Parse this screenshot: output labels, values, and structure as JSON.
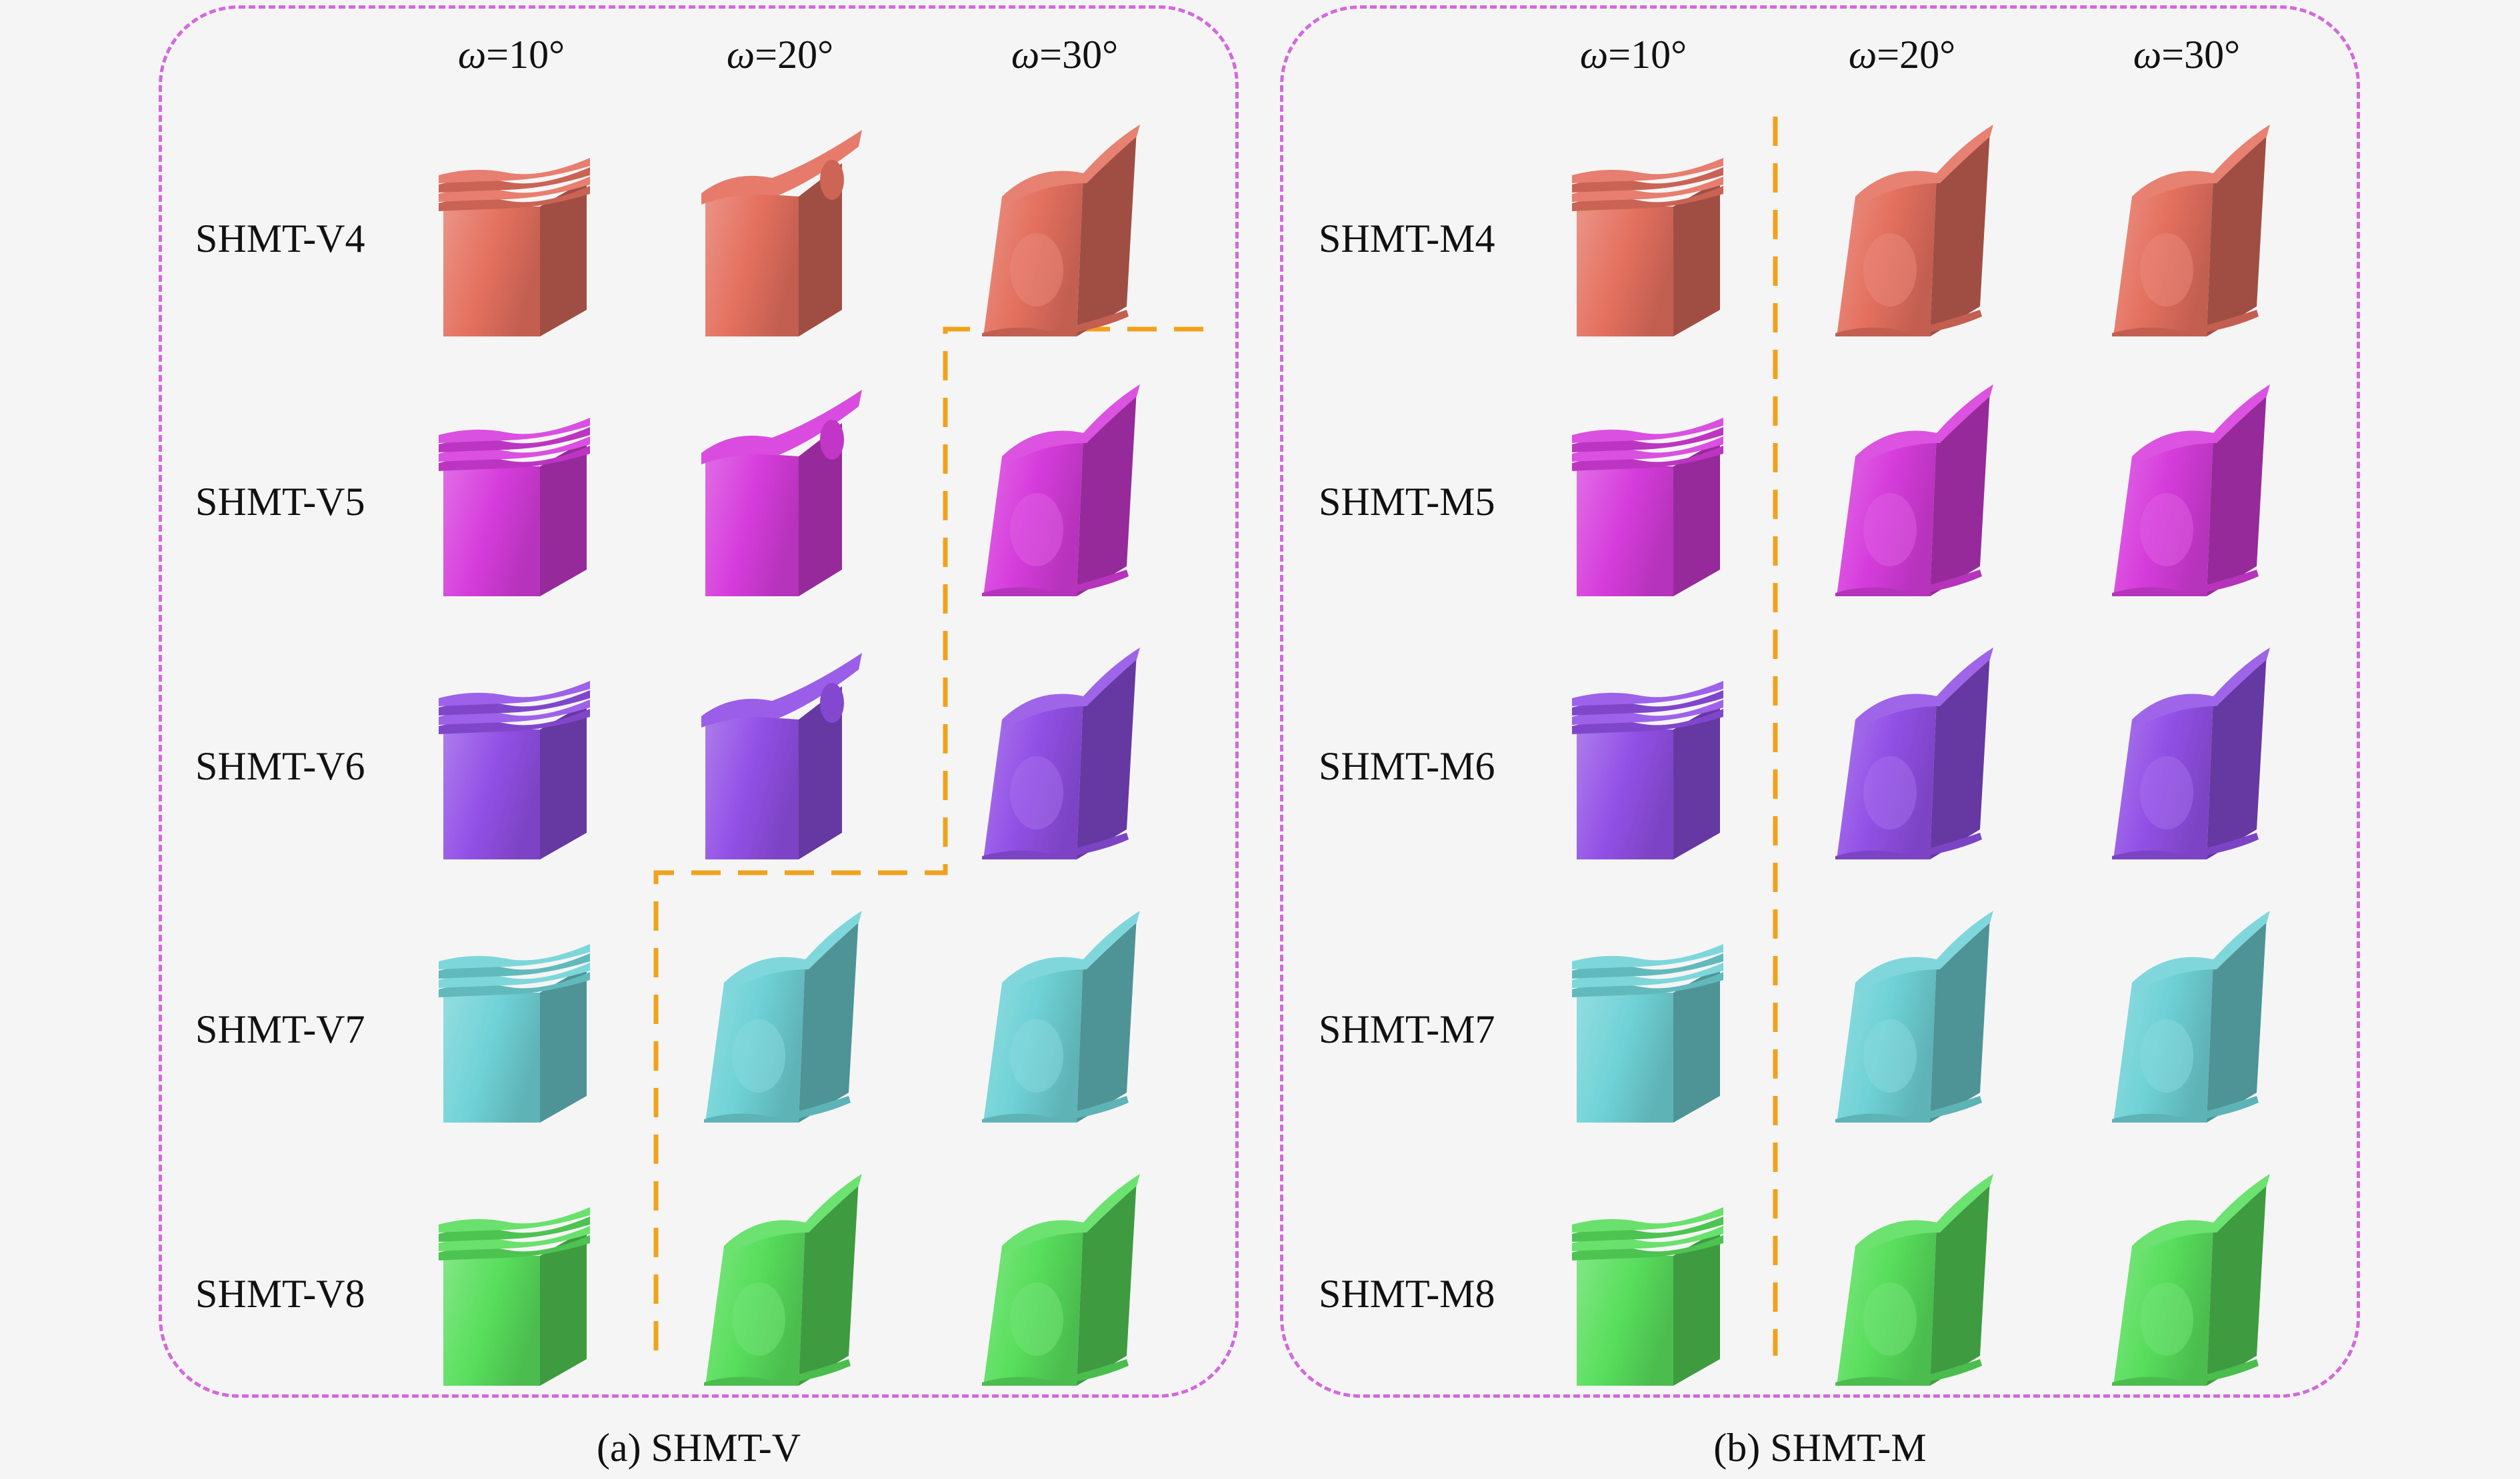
{
  "colors": {
    "panel_border": "#d468dc",
    "threshold_line": "#f0a21c",
    "rows": [
      "#e4705f",
      "#d63cdc",
      "#9250e6",
      "#6fd2d6",
      "#58de5c"
    ]
  },
  "panels": [
    {
      "id": "a",
      "caption": "(a) SHMT-V",
      "col_symbol": "ω",
      "col_values": [
        "=10°",
        "=20°",
        "=30°"
      ],
      "rows": [
        {
          "label": "SHMT-V4",
          "color": 0,
          "modes": [
            "fold",
            "mixed",
            "tilt"
          ]
        },
        {
          "label": "SHMT-V5",
          "color": 1,
          "modes": [
            "fold",
            "mixed",
            "tilt"
          ]
        },
        {
          "label": "SHMT-V6",
          "color": 2,
          "modes": [
            "fold",
            "mixed",
            "tilt"
          ]
        },
        {
          "label": "SHMT-V7",
          "color": 3,
          "modes": [
            "fold",
            "tilt",
            "tilt"
          ]
        },
        {
          "label": "SHMT-V8",
          "color": 4,
          "modes": [
            "fold",
            "tilt",
            "tilt"
          ]
        }
      ]
    },
    {
      "id": "b",
      "caption": "(b) SHMT-M",
      "col_symbol": "ω",
      "col_values": [
        "=10°",
        "=20°",
        "=30°"
      ],
      "rows": [
        {
          "label": "SHMT-M4",
          "color": 0,
          "modes": [
            "fold",
            "tilt",
            "tilt"
          ]
        },
        {
          "label": "SHMT-M5",
          "color": 1,
          "modes": [
            "fold",
            "tilt",
            "tilt"
          ]
        },
        {
          "label": "SHMT-M6",
          "color": 2,
          "modes": [
            "fold",
            "tilt",
            "tilt"
          ]
        },
        {
          "label": "SHMT-M7",
          "color": 3,
          "modes": [
            "fold",
            "tilt",
            "tilt"
          ]
        },
        {
          "label": "SHMT-M8",
          "color": 4,
          "modes": [
            "fold",
            "tilt",
            "tilt"
          ]
        }
      ]
    }
  ]
}
